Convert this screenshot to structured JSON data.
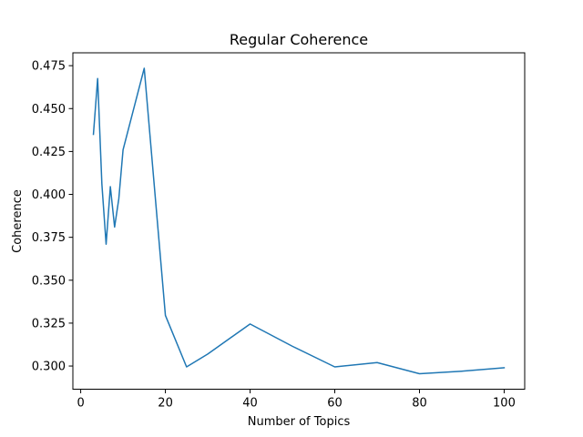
{
  "chart_data": {
    "type": "line",
    "title": "Regular Coherence",
    "xlabel": "Number of Topics",
    "ylabel": "Coherence",
    "xlim": [
      -1.85,
      104.85
    ],
    "ylim": [
      0.2865,
      0.4825
    ],
    "xticks": [
      0,
      20,
      40,
      60,
      80,
      100
    ],
    "xtick_labels": [
      "0",
      "20",
      "40",
      "60",
      "80",
      "100"
    ],
    "yticks": [
      0.3,
      0.325,
      0.35,
      0.375,
      0.4,
      0.425,
      0.45,
      0.475
    ],
    "ytick_labels": [
      "0.300",
      "0.325",
      "0.350",
      "0.375",
      "0.400",
      "0.425",
      "0.450",
      "0.475"
    ],
    "grid": false,
    "series": [
      {
        "color": "#1f77b4",
        "x": [
          3,
          4,
          5,
          6,
          7,
          8,
          9,
          10,
          15,
          20,
          25,
          30,
          40,
          50,
          60,
          70,
          80,
          90,
          100
        ],
        "y": [
          0.435,
          0.4675,
          0.406,
          0.371,
          0.4045,
          0.381,
          0.3975,
          0.426,
          0.4735,
          0.3295,
          0.2995,
          0.307,
          0.3245,
          0.3115,
          0.2995,
          0.302,
          0.2955,
          0.297,
          0.299
        ]
      }
    ]
  }
}
